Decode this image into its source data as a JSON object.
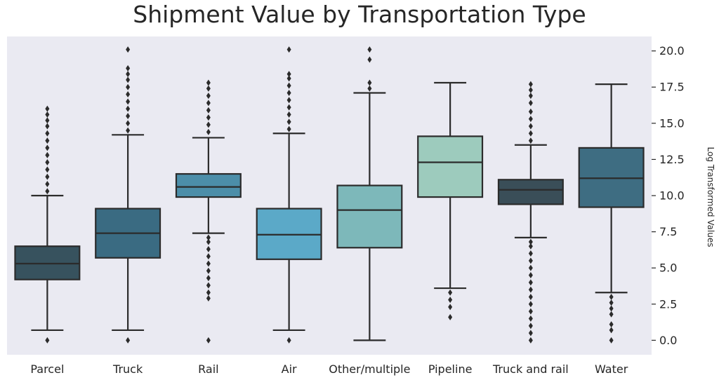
{
  "chart_data": {
    "type": "box",
    "title": "Shipment Value by Transportation Type",
    "xlabel": "",
    "ylabel": "Log Transformed Values",
    "y_axis_side": "right",
    "ylim": [
      -1.0,
      21.0
    ],
    "yticks": [
      0.0,
      2.5,
      5.0,
      7.5,
      10.0,
      12.5,
      15.0,
      17.5,
      20.0
    ],
    "ytick_labels": [
      "0.0",
      "2.5",
      "5.0",
      "7.5",
      "10.0",
      "12.5",
      "15.0",
      "17.5",
      "20.0"
    ],
    "grid": false,
    "background": "#eaeaf2",
    "categories": [
      "Parcel",
      "Truck",
      "Rail",
      "Air",
      "Other/multiple",
      "Pipeline",
      "Truck and rail",
      "Water"
    ],
    "boxes": [
      {
        "label": "Parcel",
        "color": "#37525e",
        "whisker_low": 0.7,
        "q1": 4.2,
        "median": 5.3,
        "q3": 6.5,
        "whisker_high": 10.0,
        "outliers": [
          0.0,
          10.3,
          10.8,
          11.3,
          11.8,
          12.3,
          12.8,
          13.3,
          13.8,
          14.3,
          14.8,
          15.2,
          15.6,
          16.0
        ]
      },
      {
        "label": "Truck",
        "color": "#3a6b82",
        "whisker_low": 0.7,
        "q1": 5.7,
        "median": 7.4,
        "q3": 9.1,
        "whisker_high": 14.2,
        "outliers": [
          0.0,
          14.5,
          15.0,
          15.5,
          16.0,
          16.5,
          17.0,
          17.5,
          18.0,
          18.4,
          18.8,
          20.1
        ]
      },
      {
        "label": "Rail",
        "color": "#4c8ea9",
        "whisker_low": 7.4,
        "q1": 9.9,
        "median": 10.6,
        "q3": 11.5,
        "whisker_high": 14.0,
        "outliers": [
          0.0,
          2.9,
          3.3,
          3.8,
          4.3,
          4.8,
          5.3,
          5.8,
          6.3,
          6.8,
          7.1,
          14.4,
          14.9,
          15.4,
          15.9,
          16.4,
          16.9,
          17.4,
          17.8
        ]
      },
      {
        "label": "Air",
        "color": "#5ba9c8",
        "whisker_low": 0.7,
        "q1": 5.6,
        "median": 7.3,
        "q3": 9.1,
        "whisker_high": 14.3,
        "outliers": [
          0.0,
          14.6,
          15.1,
          15.6,
          16.1,
          16.6,
          17.1,
          17.6,
          18.1,
          18.4,
          20.1
        ]
      },
      {
        "label": "Other/multiple",
        "color": "#7db8ba",
        "whisker_low": 0.0,
        "q1": 6.4,
        "median": 9.0,
        "q3": 10.7,
        "whisker_high": 17.1,
        "outliers": [
          17.4,
          17.8,
          19.4,
          20.1
        ]
      },
      {
        "label": "Pipeline",
        "color": "#9dcbbd",
        "whisker_low": 3.6,
        "q1": 9.9,
        "median": 12.3,
        "q3": 14.1,
        "whisker_high": 17.8,
        "outliers": [
          1.6,
          2.3,
          2.8,
          3.3
        ]
      },
      {
        "label": "Truck and rail",
        "color": "#3a4e58",
        "whisker_low": 7.1,
        "q1": 9.4,
        "median": 10.4,
        "q3": 11.1,
        "whisker_high": 13.5,
        "outliers": [
          0.0,
          0.5,
          1.0,
          1.5,
          2.0,
          2.5,
          3.0,
          3.5,
          4.0,
          4.5,
          5.0,
          5.5,
          6.0,
          6.5,
          6.8,
          13.8,
          14.3,
          14.8,
          15.3,
          15.8,
          16.4,
          16.9,
          17.3,
          17.7
        ]
      },
      {
        "label": "Water",
        "color": "#3e6d82",
        "whisker_low": 3.3,
        "q1": 9.2,
        "median": 11.2,
        "q3": 13.3,
        "whisker_high": 17.7,
        "outliers": [
          0.0,
          0.7,
          1.1,
          1.8,
          2.2,
          2.6,
          3.0
        ]
      }
    ]
  }
}
